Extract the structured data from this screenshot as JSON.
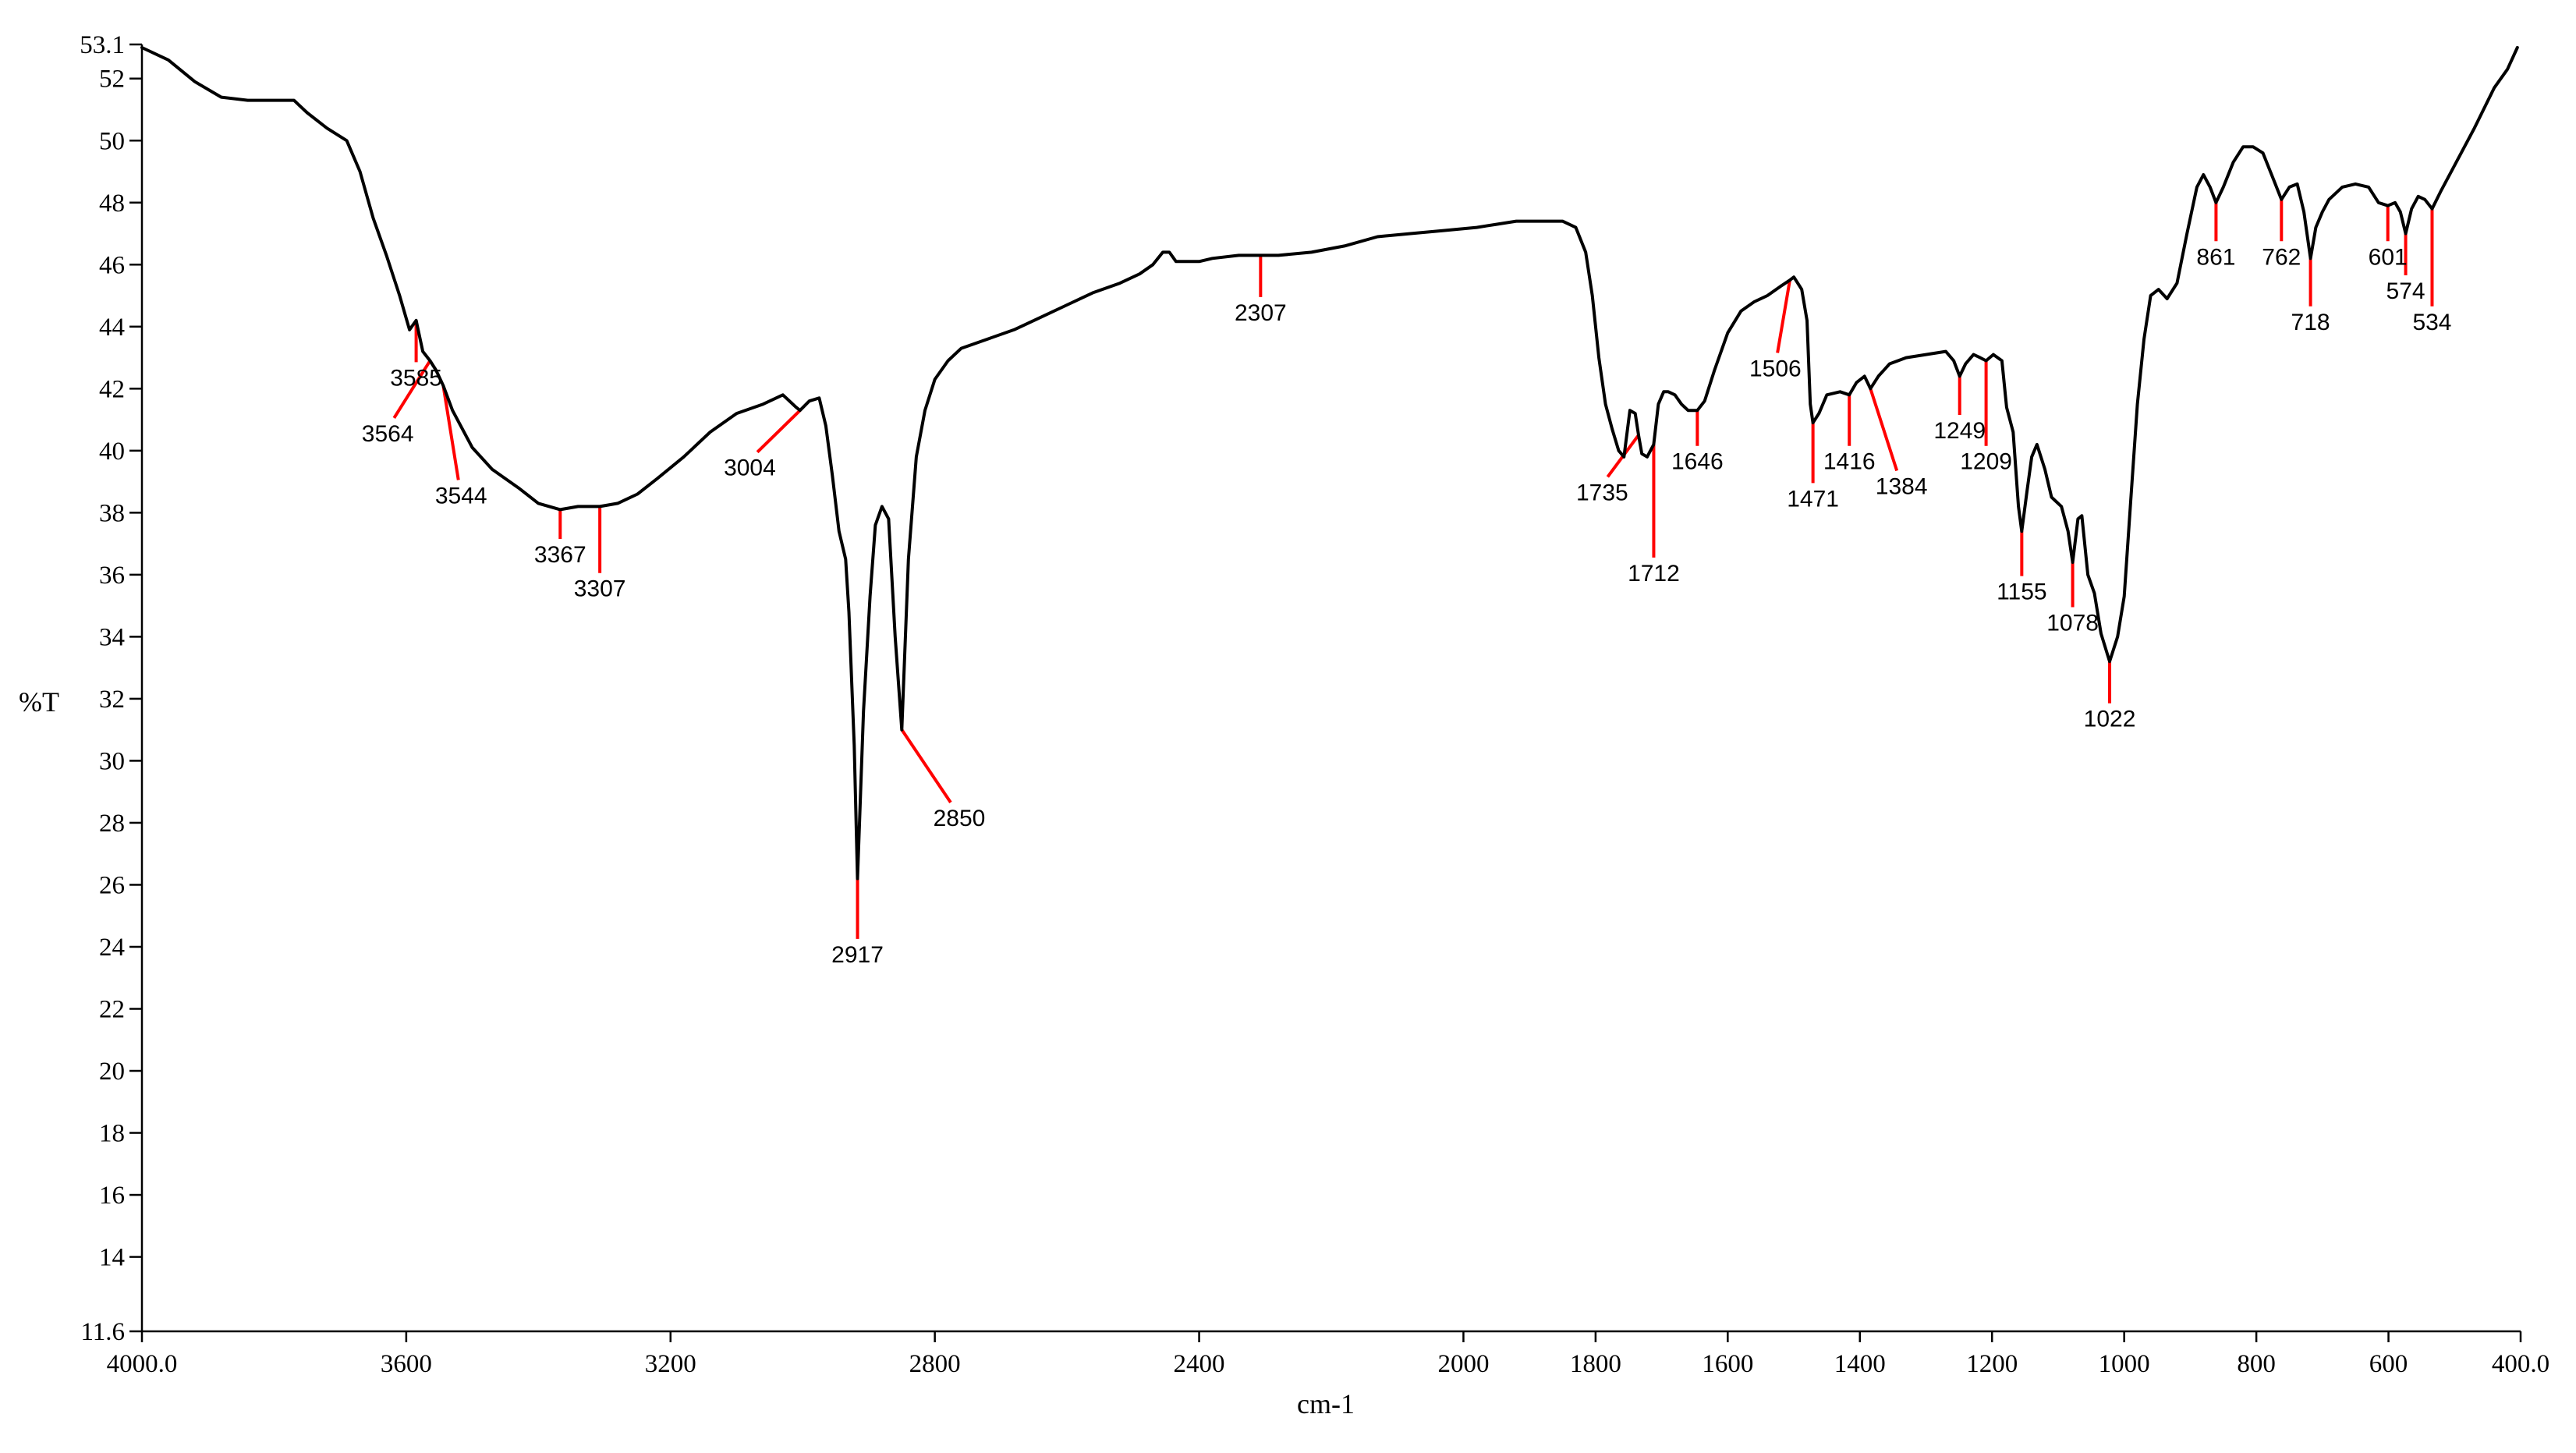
{
  "chart_data": {
    "type": "line",
    "xlabel": "cm-1",
    "ylabel": "%T",
    "xlim": [
      4000.0,
      400.0
    ],
    "ylim": [
      11.6,
      53.1
    ],
    "x_reversed": true,
    "grid": false,
    "x_ticks": [
      {
        "value": 4000,
        "label": "4000.0"
      },
      {
        "value": 3600,
        "label": "3600"
      },
      {
        "value": 3200,
        "label": "3200"
      },
      {
        "value": 2800,
        "label": "2800"
      },
      {
        "value": 2400,
        "label": "2400"
      },
      {
        "value": 2000,
        "label": "2000"
      },
      {
        "value": 1800,
        "label": "1800"
      },
      {
        "value": 1600,
        "label": "1600"
      },
      {
        "value": 1400,
        "label": "1400"
      },
      {
        "value": 1200,
        "label": "1200"
      },
      {
        "value": 1000,
        "label": "1000"
      },
      {
        "value": 800,
        "label": "800"
      },
      {
        "value": 600,
        "label": "600"
      },
      {
        "value": 400,
        "label": "400.0"
      }
    ],
    "y_ticks": [
      {
        "value": 53.1,
        "label": "53.1"
      },
      {
        "value": 52,
        "label": "52"
      },
      {
        "value": 50,
        "label": "50"
      },
      {
        "value": 48,
        "label": "48"
      },
      {
        "value": 46,
        "label": "46"
      },
      {
        "value": 44,
        "label": "44"
      },
      {
        "value": 42,
        "label": "42"
      },
      {
        "value": 40,
        "label": "40"
      },
      {
        "value": 38,
        "label": "38"
      },
      {
        "value": 36,
        "label": "36"
      },
      {
        "value": 34,
        "label": "34"
      },
      {
        "value": 32,
        "label": "32"
      },
      {
        "value": 30,
        "label": "30"
      },
      {
        "value": 28,
        "label": "28"
      },
      {
        "value": 26,
        "label": "26"
      },
      {
        "value": 24,
        "label": "24"
      },
      {
        "value": 22,
        "label": "22"
      },
      {
        "value": 20,
        "label": "20"
      },
      {
        "value": 18,
        "label": "18"
      },
      {
        "value": 16,
        "label": "16"
      },
      {
        "value": 14,
        "label": "14"
      },
      {
        "value": 11.6,
        "label": "11.6"
      }
    ],
    "series": [
      {
        "color": "#000000",
        "points": [
          [
            4000,
            53.0
          ],
          [
            3960,
            52.6
          ],
          [
            3920,
            51.9
          ],
          [
            3880,
            51.4
          ],
          [
            3840,
            51.3
          ],
          [
            3800,
            51.3
          ],
          [
            3770,
            51.3
          ],
          [
            3750,
            50.9
          ],
          [
            3720,
            50.4
          ],
          [
            3690,
            50.0
          ],
          [
            3670,
            49.0
          ],
          [
            3650,
            47.5
          ],
          [
            3630,
            46.3
          ],
          [
            3610,
            45.0
          ],
          [
            3595,
            43.9
          ],
          [
            3585,
            44.2
          ],
          [
            3575,
            43.2
          ],
          [
            3564,
            42.9
          ],
          [
            3555,
            42.6
          ],
          [
            3544,
            42.1
          ],
          [
            3530,
            41.3
          ],
          [
            3500,
            40.1
          ],
          [
            3470,
            39.4
          ],
          [
            3430,
            38.8
          ],
          [
            3400,
            38.3
          ],
          [
            3367,
            38.1
          ],
          [
            3340,
            38.2
          ],
          [
            3307,
            38.2
          ],
          [
            3280,
            38.3
          ],
          [
            3250,
            38.6
          ],
          [
            3220,
            39.1
          ],
          [
            3180,
            39.8
          ],
          [
            3140,
            40.6
          ],
          [
            3100,
            41.2
          ],
          [
            3060,
            41.5
          ],
          [
            3030,
            41.8
          ],
          [
            3010,
            41.4
          ],
          [
            3004,
            41.3
          ],
          [
            2990,
            41.6
          ],
          [
            2975,
            41.7
          ],
          [
            2965,
            40.8
          ],
          [
            2955,
            39.2
          ],
          [
            2945,
            37.4
          ],
          [
            2935,
            36.5
          ],
          [
            2930,
            34.8
          ],
          [
            2922,
            30.5
          ],
          [
            2917,
            26.2
          ],
          [
            2908,
            31.6
          ],
          [
            2898,
            35.3
          ],
          [
            2890,
            37.6
          ],
          [
            2880,
            38.2
          ],
          [
            2870,
            37.8
          ],
          [
            2860,
            34.0
          ],
          [
            2850,
            31.0
          ],
          [
            2840,
            36.5
          ],
          [
            2828,
            39.8
          ],
          [
            2815,
            41.3
          ],
          [
            2800,
            42.3
          ],
          [
            2780,
            42.9
          ],
          [
            2760,
            43.3
          ],
          [
            2720,
            43.6
          ],
          [
            2680,
            43.9
          ],
          [
            2640,
            44.3
          ],
          [
            2600,
            44.7
          ],
          [
            2560,
            45.1
          ],
          [
            2520,
            45.4
          ],
          [
            2490,
            45.7
          ],
          [
            2470,
            46.0
          ],
          [
            2455,
            46.4
          ],
          [
            2445,
            46.4
          ],
          [
            2435,
            46.1
          ],
          [
            2420,
            46.1
          ],
          [
            2400,
            46.1
          ],
          [
            2380,
            46.2
          ],
          [
            2340,
            46.3
          ],
          [
            2307,
            46.3
          ],
          [
            2280,
            46.3
          ],
          [
            2230,
            46.4
          ],
          [
            2180,
            46.6
          ],
          [
            2130,
            46.9
          ],
          [
            2080,
            47.0
          ],
          [
            2030,
            47.1
          ],
          [
            1980,
            47.2
          ],
          [
            1950,
            47.3
          ],
          [
            1920,
            47.4
          ],
          [
            1880,
            47.4
          ],
          [
            1850,
            47.4
          ],
          [
            1830,
            47.2
          ],
          [
            1815,
            46.4
          ],
          [
            1805,
            45.0
          ],
          [
            1795,
            43.0
          ],
          [
            1785,
            41.5
          ],
          [
            1775,
            40.7
          ],
          [
            1765,
            40.0
          ],
          [
            1757,
            39.8
          ],
          [
            1748,
            41.3
          ],
          [
            1740,
            41.2
          ],
          [
            1735,
            40.5
          ],
          [
            1730,
            39.9
          ],
          [
            1722,
            39.8
          ],
          [
            1712,
            40.2
          ],
          [
            1705,
            41.5
          ],
          [
            1697,
            41.9
          ],
          [
            1690,
            41.9
          ],
          [
            1680,
            41.8
          ],
          [
            1670,
            41.5
          ],
          [
            1660,
            41.3
          ],
          [
            1646,
            41.3
          ],
          [
            1635,
            41.6
          ],
          [
            1620,
            42.6
          ],
          [
            1600,
            43.8
          ],
          [
            1580,
            44.5
          ],
          [
            1560,
            44.8
          ],
          [
            1540,
            45.0
          ],
          [
            1520,
            45.3
          ],
          [
            1506,
            45.5
          ],
          [
            1500,
            45.6
          ],
          [
            1488,
            45.2
          ],
          [
            1480,
            44.2
          ],
          [
            1475,
            41.5
          ],
          [
            1471,
            40.9
          ],
          [
            1462,
            41.2
          ],
          [
            1450,
            41.8
          ],
          [
            1430,
            41.9
          ],
          [
            1416,
            41.8
          ],
          [
            1405,
            42.2
          ],
          [
            1393,
            42.4
          ],
          [
            1384,
            42.0
          ],
          [
            1372,
            42.4
          ],
          [
            1355,
            42.8
          ],
          [
            1330,
            43.0
          ],
          [
            1300,
            43.1
          ],
          [
            1270,
            43.2
          ],
          [
            1258,
            42.9
          ],
          [
            1249,
            42.4
          ],
          [
            1240,
            42.8
          ],
          [
            1228,
            43.1
          ],
          [
            1218,
            43.0
          ],
          [
            1209,
            42.9
          ],
          [
            1198,
            43.1
          ],
          [
            1185,
            42.9
          ],
          [
            1178,
            41.4
          ],
          [
            1168,
            40.6
          ],
          [
            1160,
            38.2
          ],
          [
            1155,
            37.4
          ],
          [
            1147,
            38.7
          ],
          [
            1140,
            39.8
          ],
          [
            1132,
            40.2
          ],
          [
            1120,
            39.4
          ],
          [
            1110,
            38.5
          ],
          [
            1095,
            38.2
          ],
          [
            1085,
            37.4
          ],
          [
            1078,
            36.4
          ],
          [
            1070,
            37.8
          ],
          [
            1064,
            37.9
          ],
          [
            1055,
            36.0
          ],
          [
            1045,
            35.4
          ],
          [
            1035,
            34.1
          ],
          [
            1022,
            33.2
          ],
          [
            1010,
            34.0
          ],
          [
            1000,
            35.3
          ],
          [
            990,
            38.4
          ],
          [
            980,
            41.5
          ],
          [
            970,
            43.6
          ],
          [
            960,
            45.0
          ],
          [
            948,
            45.2
          ],
          [
            935,
            44.9
          ],
          [
            920,
            45.4
          ],
          [
            905,
            47.0
          ],
          [
            890,
            48.5
          ],
          [
            880,
            48.9
          ],
          [
            870,
            48.5
          ],
          [
            861,
            48.0
          ],
          [
            850,
            48.5
          ],
          [
            835,
            49.3
          ],
          [
            820,
            49.8
          ],
          [
            805,
            49.8
          ],
          [
            790,
            49.6
          ],
          [
            775,
            48.8
          ],
          [
            762,
            48.1
          ],
          [
            750,
            48.5
          ],
          [
            738,
            48.6
          ],
          [
            728,
            47.7
          ],
          [
            718,
            46.2
          ],
          [
            710,
            47.2
          ],
          [
            700,
            47.7
          ],
          [
            690,
            48.1
          ],
          [
            670,
            48.5
          ],
          [
            650,
            48.6
          ],
          [
            630,
            48.5
          ],
          [
            615,
            48.0
          ],
          [
            601,
            47.9
          ],
          [
            590,
            48.0
          ],
          [
            582,
            47.7
          ],
          [
            574,
            47.0
          ],
          [
            565,
            47.8
          ],
          [
            555,
            48.2
          ],
          [
            545,
            48.1
          ],
          [
            534,
            47.8
          ],
          [
            520,
            48.4
          ],
          [
            500,
            49.2
          ],
          [
            470,
            50.4
          ],
          [
            440,
            51.7
          ],
          [
            420,
            52.3
          ],
          [
            405,
            53.0
          ]
        ]
      }
    ],
    "peaks": [
      {
        "label": "3585",
        "x": 3585,
        "label_x": 3585,
        "label_y": 42.1,
        "marker": "v"
      },
      {
        "label": "3564",
        "x": 3564,
        "label_x": 3628,
        "label_y": 40.3,
        "marker": "d"
      },
      {
        "label": "3544",
        "x": 3544,
        "label_x": 3517,
        "label_y": 38.3,
        "marker": "d"
      },
      {
        "label": "3367",
        "x": 3367,
        "label_x": 3367,
        "label_y": 36.4,
        "marker": "v"
      },
      {
        "label": "3307",
        "x": 3307,
        "label_x": 3307,
        "label_y": 35.3,
        "marker": "v"
      },
      {
        "label": "3004",
        "x": 3004,
        "label_x": 3080,
        "label_y": 39.2,
        "marker": "d"
      },
      {
        "label": "2917",
        "x": 2917,
        "label_x": 2917,
        "label_y": 23.5,
        "marker": "v"
      },
      {
        "label": "2850",
        "x": 2850,
        "label_x": 2763,
        "label_y": 27.9,
        "marker": "d"
      },
      {
        "label": "2307",
        "x": 2307,
        "label_x": 2307,
        "label_y": 44.2,
        "marker": "v"
      },
      {
        "label": "1735",
        "x": 1735,
        "label_x": 1790,
        "label_y": 38.4,
        "marker": "d"
      },
      {
        "label": "1712",
        "x": 1712,
        "label_x": 1712,
        "label_y": 35.8,
        "marker": "v"
      },
      {
        "label": "1646",
        "x": 1646,
        "label_x": 1646,
        "label_y": 39.4,
        "marker": "v"
      },
      {
        "label": "1506",
        "x": 1506,
        "label_x": 1528,
        "label_y": 42.4,
        "marker": "d"
      },
      {
        "label": "1471",
        "x": 1471,
        "label_x": 1471,
        "label_y": 38.2,
        "marker": "v"
      },
      {
        "label": "1416",
        "x": 1416,
        "label_x": 1416,
        "label_y": 39.4,
        "marker": "v"
      },
      {
        "label": "1384",
        "x": 1384,
        "label_x": 1337,
        "label_y": 38.6,
        "marker": "d"
      },
      {
        "label": "1249",
        "x": 1249,
        "label_x": 1249,
        "label_y": 40.4,
        "marker": "v"
      },
      {
        "label": "1209",
        "x": 1209,
        "label_x": 1209,
        "label_y": 39.4,
        "marker": "v"
      },
      {
        "label": "1155",
        "x": 1155,
        "label_x": 1155,
        "label_y": 35.2,
        "marker": "v"
      },
      {
        "label": "1078",
        "x": 1078,
        "label_x": 1078,
        "label_y": 34.2,
        "marker": "v"
      },
      {
        "label": "1022",
        "x": 1022,
        "label_x": 1022,
        "label_y": 31.1,
        "marker": "v"
      },
      {
        "label": "861",
        "x": 861,
        "label_x": 861,
        "label_y": 46.0,
        "marker": "v"
      },
      {
        "label": "762",
        "x": 762,
        "label_x": 762,
        "label_y": 46.0,
        "marker": "v"
      },
      {
        "label": "718",
        "x": 718,
        "label_x": 718,
        "label_y": 43.9,
        "marker": "v"
      },
      {
        "label": "601",
        "x": 601,
        "label_x": 601,
        "label_y": 46.0,
        "marker": "v"
      },
      {
        "label": "574",
        "x": 574,
        "label_x": 574,
        "label_y": 44.9,
        "marker": "v"
      },
      {
        "label": "534",
        "x": 534,
        "label_x": 534,
        "label_y": 43.9,
        "marker": "v"
      }
    ],
    "marker_color": "#ff0000"
  }
}
